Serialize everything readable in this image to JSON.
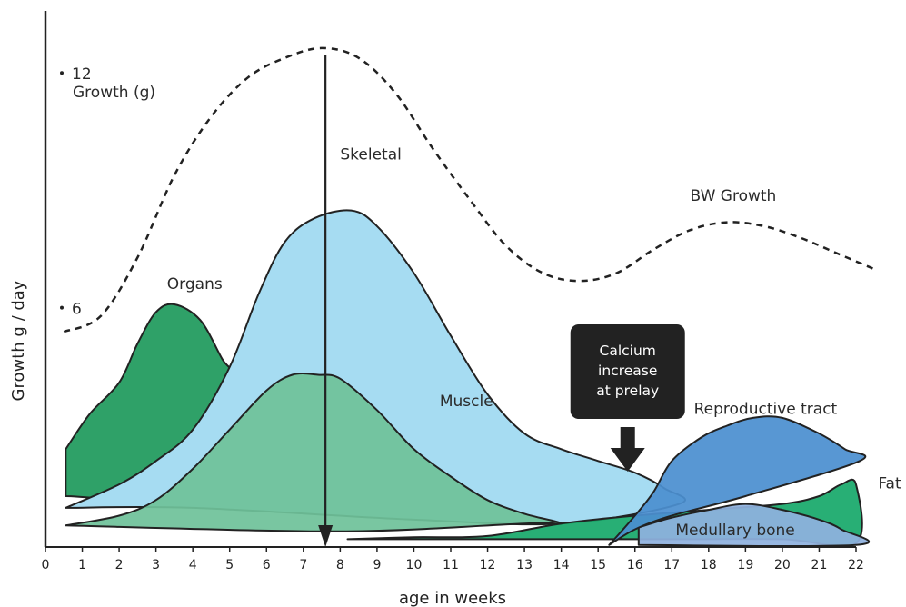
{
  "chart_data": {
    "type": "area",
    "title": "",
    "xlabel": "age in weeks",
    "ylabel": "Growth g / day",
    "xlim": [
      0,
      22
    ],
    "ylim": [
      0,
      13.7
    ],
    "x_ticks": [
      0,
      1,
      2,
      3,
      4,
      5,
      6,
      7,
      8,
      9,
      10,
      11,
      12,
      13,
      14,
      15,
      16,
      17,
      18,
      19,
      20,
      21,
      22
    ],
    "y_ticks": [
      {
        "value": 12,
        "label": "12"
      },
      {
        "value": 6,
        "label": "6"
      }
    ],
    "growth_label": "Growth (g)",
    "annotation": {
      "text_lines": [
        "Calcium",
        "increase",
        "at prelay"
      ],
      "arrow_x": 16,
      "marker_week": 7.6,
      "colors": {
        "box": "#222222",
        "text": "#ffffff"
      }
    },
    "series": [
      {
        "key": "organs",
        "name": "Organs",
        "color": "#1f9a5c",
        "label_pos": {
          "x": 3.3,
          "y": 6.6
        },
        "points": [
          [
            0.55,
            2.5
          ],
          [
            1.2,
            3.4
          ],
          [
            2.0,
            4.2
          ],
          [
            2.5,
            5.2
          ],
          [
            3.0,
            6.0
          ],
          [
            3.5,
            6.2
          ],
          [
            4.2,
            5.8
          ],
          [
            4.8,
            4.8
          ],
          [
            5.3,
            4.0
          ],
          [
            5.3,
            1.3
          ],
          [
            0.55,
            1.3
          ]
        ]
      },
      {
        "key": "skeletal",
        "name": "Skeletal",
        "color": "#a6dcf2",
        "label_pos": {
          "x": 8.0,
          "y": 9.9
        },
        "points": [
          [
            0.55,
            1.0
          ],
          [
            2.0,
            1.6
          ],
          [
            3.0,
            2.2
          ],
          [
            4.0,
            3.0
          ],
          [
            5.0,
            4.6
          ],
          [
            5.8,
            6.5
          ],
          [
            6.5,
            7.8
          ],
          [
            7.3,
            8.4
          ],
          [
            8.3,
            8.6
          ],
          [
            9.0,
            8.2
          ],
          [
            10.0,
            7.0
          ],
          [
            11.0,
            5.4
          ],
          [
            12.0,
            3.9
          ],
          [
            13.0,
            2.9
          ],
          [
            14.0,
            2.5
          ],
          [
            15.0,
            2.2
          ],
          [
            16.0,
            1.9
          ],
          [
            16.8,
            1.5
          ],
          [
            17.2,
            1.1
          ],
          [
            14.0,
            0.6
          ],
          [
            10.0,
            0.7
          ],
          [
            4.0,
            1.0
          ],
          [
            0.55,
            1.0
          ]
        ]
      },
      {
        "key": "muscle",
        "name": "Muscle",
        "color": "#6fc29a",
        "label_pos": {
          "x": 10.7,
          "y": 3.6
        },
        "points": [
          [
            0.55,
            0.55
          ],
          [
            2.0,
            0.8
          ],
          [
            3.0,
            1.2
          ],
          [
            4.0,
            2.0
          ],
          [
            5.0,
            3.0
          ],
          [
            6.0,
            4.0
          ],
          [
            6.7,
            4.4
          ],
          [
            7.4,
            4.4
          ],
          [
            8.0,
            4.3
          ],
          [
            9.0,
            3.5
          ],
          [
            10.0,
            2.5
          ],
          [
            11.0,
            1.8
          ],
          [
            12.0,
            1.2
          ],
          [
            13.0,
            0.85
          ],
          [
            14.0,
            0.6
          ],
          [
            13.0,
            0.6
          ],
          [
            8.0,
            0.4
          ],
          [
            0.55,
            0.55
          ]
        ]
      },
      {
        "key": "fat",
        "name": "Fat",
        "color": "#18a96a",
        "label_pos": {
          "x": 22.6,
          "y": 1.5
        },
        "points": [
          [
            8.2,
            0.2
          ],
          [
            10.0,
            0.25
          ],
          [
            12.0,
            0.28
          ],
          [
            14.0,
            0.6
          ],
          [
            16.0,
            0.8
          ],
          [
            18.0,
            0.95
          ],
          [
            20.0,
            1.1
          ],
          [
            21.0,
            1.3
          ],
          [
            21.6,
            1.6
          ],
          [
            22.0,
            1.6
          ],
          [
            22.0,
            0.1
          ],
          [
            20.0,
            0.2
          ],
          [
            17.0,
            0.2
          ],
          [
            12.0,
            0.2
          ],
          [
            8.2,
            0.2
          ]
        ]
      },
      {
        "key": "medullary",
        "name": "Medullary bone",
        "color": "#8fb2df",
        "label_pos": {
          "x": 17.1,
          "y": 0.3
        },
        "points": [
          [
            16.1,
            0.5
          ],
          [
            17.0,
            0.75
          ],
          [
            18.0,
            0.95
          ],
          [
            19.0,
            1.1
          ],
          [
            20.0,
            0.95
          ],
          [
            21.0,
            0.7
          ],
          [
            21.6,
            0.45
          ],
          [
            22.0,
            0.05
          ],
          [
            16.1,
            0.05
          ]
        ]
      },
      {
        "key": "reproductive",
        "name": "Reproductive tract",
        "color": "#4b8fd0",
        "label_pos": {
          "x": 17.6,
          "y": 3.4
        },
        "points": [
          [
            15.3,
            0.05
          ],
          [
            16.0,
            0.8
          ],
          [
            16.5,
            1.4
          ],
          [
            17.0,
            2.2
          ],
          [
            17.8,
            2.8
          ],
          [
            18.5,
            3.1
          ],
          [
            19.2,
            3.3
          ],
          [
            20.0,
            3.3
          ],
          [
            21.0,
            2.9
          ],
          [
            21.7,
            2.5
          ],
          [
            22.1,
            2.2
          ],
          [
            19.0,
            1.3
          ],
          [
            17.0,
            0.8
          ],
          [
            16.0,
            0.45
          ],
          [
            15.3,
            0.05
          ]
        ]
      }
    ],
    "bw_growth": {
      "name": "BW Growth",
      "color": "#222222",
      "label_pos": {
        "x": 17.5,
        "y": 8.85
      },
      "points": [
        [
          0.5,
          5.5
        ],
        [
          1.5,
          5.9
        ],
        [
          2.5,
          7.4
        ],
        [
          3.5,
          9.5
        ],
        [
          4.5,
          11.0
        ],
        [
          5.5,
          12.0
        ],
        [
          6.5,
          12.5
        ],
        [
          7.5,
          12.75
        ],
        [
          8.5,
          12.5
        ],
        [
          9.5,
          11.6
        ],
        [
          10.5,
          10.2
        ],
        [
          11.5,
          8.9
        ],
        [
          12.5,
          7.7
        ],
        [
          13.5,
          7.0
        ],
        [
          14.5,
          6.8
        ],
        [
          15.5,
          7.0
        ],
        [
          16.5,
          7.6
        ],
        [
          17.5,
          8.1
        ],
        [
          18.5,
          8.3
        ],
        [
          19.5,
          8.2
        ],
        [
          20.5,
          7.9
        ],
        [
          21.5,
          7.5
        ],
        [
          22.5,
          7.1
        ]
      ]
    }
  }
}
